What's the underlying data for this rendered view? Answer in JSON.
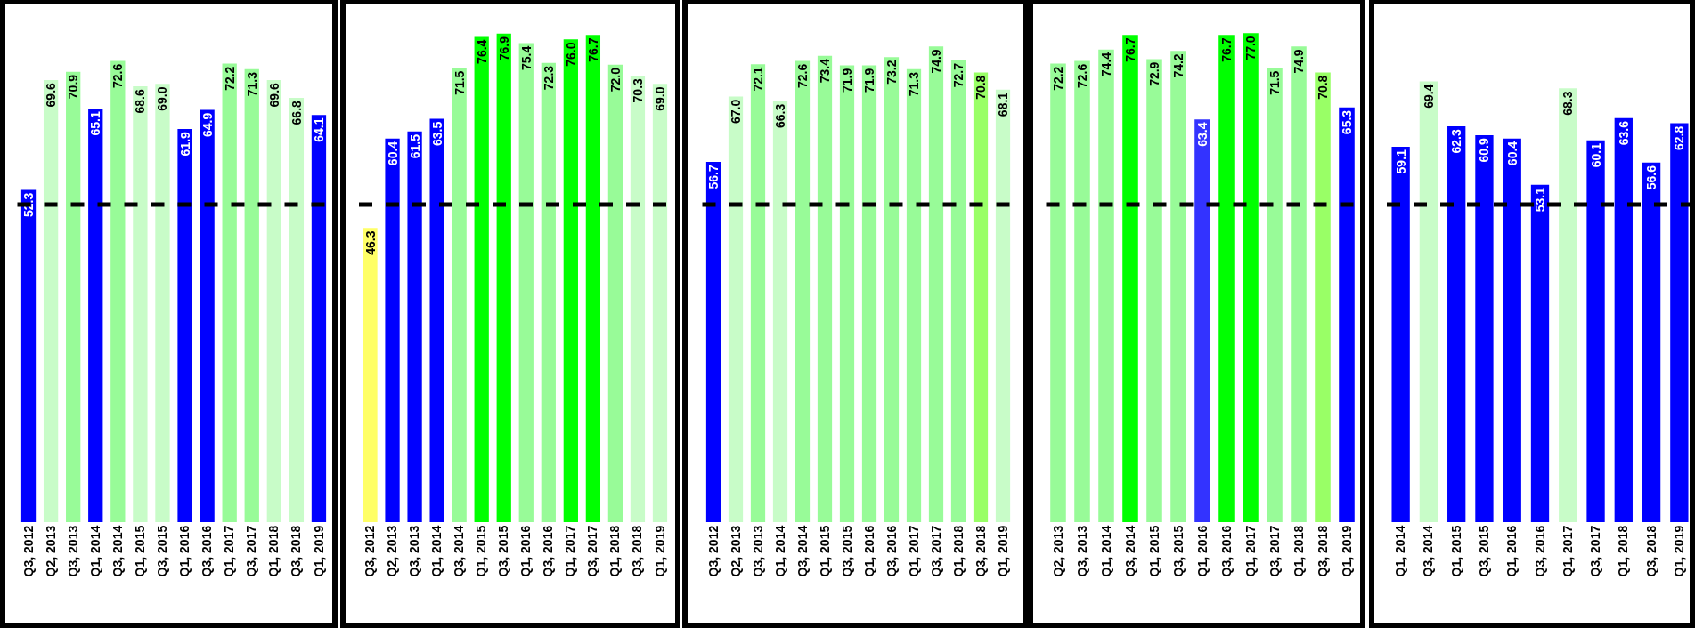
{
  "chart_data": [
    {
      "type": "bar",
      "categories": [
        "Q3, 2012",
        "Q2, 2013",
        "Q3, 2013",
        "Q1, 2014",
        "Q3, 2014",
        "Q1, 2015",
        "Q3, 2015",
        "Q1, 2016",
        "Q3, 2016",
        "Q1, 2017",
        "Q3, 2017",
        "Q1, 2018",
        "Q3, 2018",
        "Q1, 2019"
      ],
      "values": [
        52.3,
        69.6,
        70.9,
        65.1,
        72.6,
        68.6,
        69.0,
        61.9,
        64.9,
        72.2,
        71.3,
        69.6,
        66.8,
        64.1
      ],
      "value_labels": [
        "52.3",
        "69.6",
        "70.9",
        "65.1",
        "72.6",
        "68.6",
        "69.0",
        "61.9",
        "64.9",
        "72.2",
        "71.3",
        "69.6",
        "66.8",
        "64.1"
      ],
      "colors": [
        "#0000ff",
        "#c8fcc8",
        "#98fb98",
        "#0000ff",
        "#98fb98",
        "#c8fcc8",
        "#c8fcc8",
        "#0000ff",
        "#0000ff",
        "#98fb98",
        "#98fb98",
        "#c8fcc8",
        "#c8fcc8",
        "#0000ff"
      ],
      "ylim": [
        0,
        81.5
      ],
      "tick_labels": "x",
      "ref_lines": [
        {
          "axis": "y",
          "value": 50,
          "color": "#000000",
          "line_style": "dashed"
        }
      ]
    },
    {
      "type": "bar",
      "categories": [
        "Q3, 2012",
        "Q2, 2013",
        "Q3, 2013",
        "Q1, 2014",
        "Q3, 2014",
        "Q1, 2015",
        "Q3, 2015",
        "Q1, 2016",
        "Q3, 2016",
        "Q1, 2017",
        "Q3, 2017",
        "Q1, 2018",
        "Q3, 2018",
        "Q1, 2019"
      ],
      "values": [
        46.3,
        60.4,
        61.5,
        63.5,
        71.5,
        76.4,
        76.9,
        75.4,
        72.3,
        76.0,
        76.7,
        72.0,
        70.3,
        69.0
      ],
      "value_labels": [
        "46.3",
        "60.4",
        "61.5",
        "63.5",
        "71.5",
        "76.4",
        "76.9",
        "75.4",
        "72.3",
        "76.0",
        "76.7",
        "72.0",
        "70.3",
        "69.0"
      ],
      "colors": [
        "#ffff66",
        "#0000ff",
        "#0000ff",
        "#0000ff",
        "#98fb98",
        "#00ff00",
        "#00ff00",
        "#98fb98",
        "#98fb98",
        "#00ff00",
        "#00ff00",
        "#98fb98",
        "#c8fcc8",
        "#c8fcc8"
      ],
      "ylim": [
        0,
        81.5
      ],
      "tick_labels": "x",
      "ref_lines": [
        {
          "axis": "y",
          "value": 50,
          "color": "#000000",
          "line_style": "dashed"
        }
      ]
    },
    {
      "type": "bar",
      "categories": [
        "Q3, 2012",
        "Q2, 2013",
        "Q3, 2013",
        "Q1, 2014",
        "Q3, 2014",
        "Q1, 2015",
        "Q3, 2015",
        "Q1, 2016",
        "Q3, 2016",
        "Q1, 2017",
        "Q3, 2017",
        "Q1, 2018",
        "Q3, 2018",
        "Q1, 2019"
      ],
      "values": [
        56.7,
        67.0,
        72.1,
        66.3,
        72.6,
        73.4,
        71.9,
        71.9,
        73.2,
        71.3,
        74.9,
        72.7,
        70.8,
        68.1
      ],
      "value_labels": [
        "56.7",
        "67.0",
        "72.1",
        "66.3",
        "72.6",
        "73.4",
        "71.9",
        "71.9",
        "73.2",
        "71.3",
        "74.9",
        "72.7",
        "70.8",
        "68.1"
      ],
      "colors": [
        "#0000ff",
        "#c8fcc8",
        "#98fb98",
        "#c8fcc8",
        "#98fb98",
        "#98fb98",
        "#98fb98",
        "#98fb98",
        "#98fb98",
        "#98fb98",
        "#98fb98",
        "#98fb98",
        "#99ff66",
        "#c8fcc8"
      ],
      "ylim": [
        0,
        81.5
      ],
      "tick_labels": "x",
      "ref_lines": [
        {
          "axis": "y",
          "value": 50,
          "color": "#000000",
          "line_style": "dashed"
        }
      ]
    },
    {
      "type": "bar",
      "categories": [
        "Q2, 2013",
        "Q3, 2013",
        "Q1, 2014",
        "Q3, 2014",
        "Q1, 2015",
        "Q3, 2015",
        "Q1, 2016",
        "Q3, 2016",
        "Q1, 2017",
        "Q3, 2017",
        "Q1, 2018",
        "Q3, 2018",
        "Q1, 2019"
      ],
      "values": [
        72.2,
        72.6,
        74.4,
        76.7,
        72.9,
        74.2,
        63.4,
        76.7,
        77.0,
        71.5,
        74.9,
        70.8,
        65.3
      ],
      "value_labels": [
        "72.2",
        "72.6",
        "74.4",
        "76.7",
        "72.9",
        "74.2",
        "63.4",
        "76.7",
        "77.0",
        "71.5",
        "74.9",
        "70.8",
        "65.3"
      ],
      "colors": [
        "#98fb98",
        "#98fb98",
        "#98fb98",
        "#00ff00",
        "#98fb98",
        "#98fb98",
        "#3333ff",
        "#00ff00",
        "#00ff00",
        "#98fb98",
        "#98fb98",
        "#99ff66",
        "#0000ff"
      ],
      "ylim": [
        0,
        81.5
      ],
      "tick_labels": "x",
      "ref_lines": [
        {
          "axis": "y",
          "value": 50,
          "color": "#000000",
          "line_style": "dashed"
        }
      ]
    },
    {
      "type": "bar",
      "categories": [
        "Q1, 2014",
        "Q3, 2014",
        "Q1, 2015",
        "Q3, 2015",
        "Q1, 2016",
        "Q3, 2016",
        "Q1, 2017",
        "Q3, 2017",
        "Q1, 2018",
        "Q3, 2018",
        "Q1, 2019"
      ],
      "values": [
        59.1,
        69.4,
        62.3,
        60.9,
        60.4,
        53.1,
        68.3,
        60.1,
        63.6,
        56.6,
        62.8
      ],
      "value_labels": [
        "59.1",
        "69.4",
        "62.3",
        "60.9",
        "60.4",
        "53.1",
        "68.3",
        "60.1",
        "63.6",
        "56.6",
        "62.8"
      ],
      "colors": [
        "#0000ff",
        "#c8fcc8",
        "#0000ff",
        "#0000ff",
        "#0000ff",
        "#0000ff",
        "#c8fcc8",
        "#0000ff",
        "#0000ff",
        "#0000ff",
        "#0000ff"
      ],
      "ylim": [
        0,
        81.5
      ],
      "tick_labels": "x",
      "ref_lines": [
        {
          "axis": "y",
          "value": 50,
          "color": "#000000",
          "line_style": "dashed"
        }
      ]
    }
  ]
}
